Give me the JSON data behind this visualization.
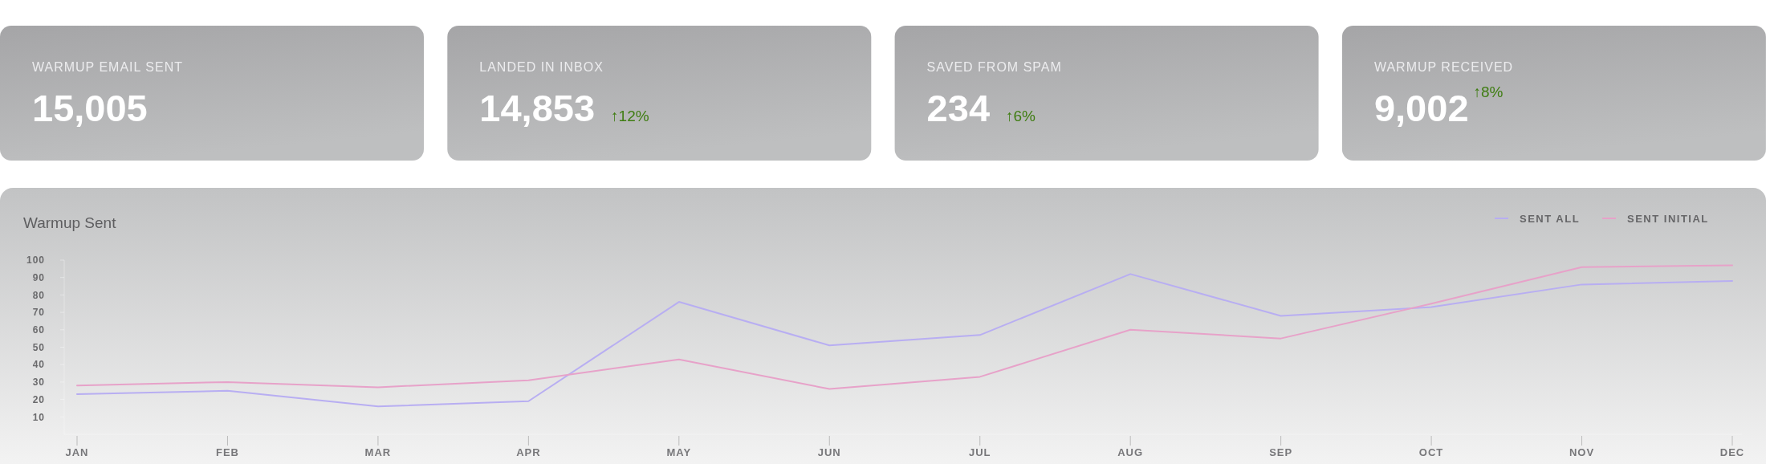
{
  "chart_data": [
    {
      "type": "other",
      "title": "WARMUP EMAIL SENT",
      "annotations": [
        "15,005"
      ]
    },
    {
      "type": "other",
      "title": "LANDED IN INBOX",
      "annotations": [
        "14,853",
        "↑12%"
      ]
    },
    {
      "type": "other",
      "title": "SAVED FROM SPAM",
      "annotations": [
        "234",
        "↑6%"
      ]
    },
    {
      "type": "other",
      "title": "WARMUP RECEIVED",
      "annotations": [
        "9,002$^{↑8%}$"
      ]
    },
    {
      "type": "line",
      "title": "Warmup Sent",
      "legend": "top right",
      "categories": [
        "JAN",
        "FEB",
        "MAR",
        "APR",
        "MAY",
        "JUN",
        "JUL",
        "AUG",
        "SEP",
        "OCT",
        "NOV",
        "DEC"
      ],
      "ylim": [
        0,
        100
      ],
      "yticks": [
        10,
        20,
        30,
        40,
        50,
        60,
        70,
        80,
        90,
        100
      ],
      "series": [
        {
          "name": "SENT ALL",
          "color": "#b8aef2",
          "values": [
            23,
            25,
            16,
            19,
            76,
            51,
            57,
            92,
            68,
            73,
            86,
            88
          ]
        },
        {
          "name": "SENT INITIAL",
          "color": "#e7a2c9",
          "values": [
            28,
            30,
            27,
            31,
            43,
            26,
            33,
            60,
            55,
            75,
            96,
            97
          ]
        }
      ]
    }
  ]
}
